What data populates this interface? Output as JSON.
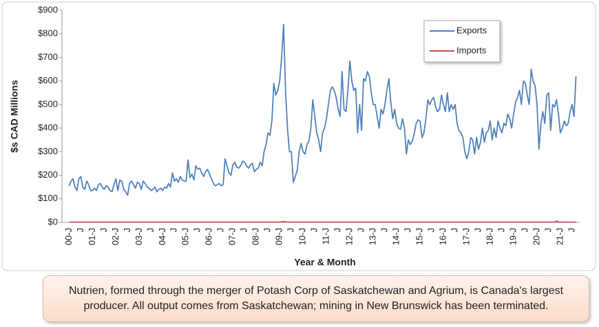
{
  "chart_data": {
    "type": "line",
    "caption": "Nutrien, formed through the merger of Potash Corp of Saskatchewan and Agrium, is Canada's largest producer. All output comes from Saskatchewan; mining in New Brunswick has been terminated.",
    "x_label": "Year & Month",
    "y_label": "$s CAD Millions",
    "ylim": [
      0,
      900
    ],
    "yticks": [
      {
        "value": 0,
        "label": "$0"
      },
      {
        "value": 100,
        "label": "$100"
      },
      {
        "value": 200,
        "label": "$200"
      },
      {
        "value": 300,
        "label": "$300"
      },
      {
        "value": 400,
        "label": "$400"
      },
      {
        "value": 500,
        "label": "$500"
      },
      {
        "value": 600,
        "label": "$600"
      },
      {
        "value": 700,
        "label": "$700"
      },
      {
        "value": 800,
        "label": "$800"
      },
      {
        "value": 900,
        "label": "$900"
      }
    ],
    "categories": [
      "00-J",
      null,
      null,
      null,
      null,
      null,
      "J",
      null,
      null,
      null,
      null,
      null,
      "01-J",
      null,
      null,
      null,
      null,
      null,
      "J",
      null,
      null,
      null,
      null,
      null,
      "02-J",
      null,
      null,
      null,
      null,
      null,
      "J",
      null,
      null,
      null,
      null,
      null,
      "03-J",
      null,
      null,
      null,
      null,
      null,
      "J",
      null,
      null,
      null,
      null,
      null,
      "04-J",
      null,
      null,
      null,
      null,
      null,
      "J",
      null,
      null,
      null,
      null,
      null,
      "05-J",
      null,
      null,
      null,
      null,
      null,
      "J",
      null,
      null,
      null,
      null,
      null,
      "06-J",
      null,
      null,
      null,
      null,
      null,
      "J",
      null,
      null,
      null,
      null,
      null,
      "07-J",
      null,
      null,
      null,
      null,
      null,
      "J",
      null,
      null,
      null,
      null,
      null,
      "08-J",
      null,
      null,
      null,
      null,
      null,
      "J",
      null,
      null,
      null,
      null,
      null,
      "09-J",
      null,
      null,
      null,
      null,
      null,
      "J",
      null,
      null,
      null,
      null,
      null,
      "10-J",
      null,
      null,
      null,
      null,
      null,
      "J",
      null,
      null,
      null,
      null,
      null,
      "11-J",
      null,
      null,
      null,
      null,
      null,
      "J",
      null,
      null,
      null,
      null,
      null,
      "12-J",
      null,
      null,
      null,
      null,
      null,
      "J",
      null,
      null,
      null,
      null,
      null,
      "13-J",
      null,
      null,
      null,
      null,
      null,
      "J",
      null,
      null,
      null,
      null,
      null,
      "14-J",
      null,
      null,
      null,
      null,
      null,
      "J",
      null,
      null,
      null,
      null,
      null,
      "15-J",
      null,
      null,
      null,
      null,
      null,
      "J",
      null,
      null,
      null,
      null,
      null,
      "16-J",
      null,
      null,
      null,
      null,
      null,
      "J",
      null,
      null,
      null,
      null,
      null,
      "17-J",
      null,
      null,
      null,
      null,
      null,
      "J",
      null,
      null,
      null,
      null,
      null,
      "18-J",
      null,
      null,
      null,
      null,
      null,
      "J",
      null,
      null,
      null,
      null,
      null,
      "19-J",
      null,
      null,
      null,
      null,
      null,
      "J",
      null,
      null,
      null,
      null,
      null,
      "20-J",
      null,
      null,
      null,
      null,
      null,
      "J",
      null,
      null,
      null,
      null,
      null,
      "21-J",
      null,
      null,
      null,
      null,
      null,
      "J",
      null,
      null
    ],
    "series": [
      {
        "name": "Exports",
        "color": "#4f81bd",
        "values": [
          155,
          175,
          185,
          150,
          135,
          185,
          195,
          150,
          140,
          175,
          160,
          135,
          135,
          145,
          135,
          160,
          165,
          150,
          140,
          155,
          150,
          135,
          130,
          160,
          185,
          135,
          180,
          175,
          140,
          130,
          115,
          165,
          175,
          160,
          145,
          170,
          165,
          140,
          175,
          165,
          150,
          145,
          135,
          140,
          150,
          130,
          140,
          145,
          135,
          150,
          145,
          165,
          150,
          210,
          175,
          185,
          170,
          195,
          180,
          175,
          175,
          265,
          190,
          205,
          180,
          240,
          225,
          230,
          210,
          195,
          215,
          225,
          205,
          185,
          165,
          155,
          160,
          165,
          155,
          160,
          270,
          240,
          210,
          200,
          245,
          255,
          235,
          230,
          240,
          260,
          255,
          240,
          230,
          245,
          250,
          215,
          225,
          230,
          255,
          240,
          300,
          330,
          380,
          370,
          430,
          590,
          540,
          560,
          600,
          700,
          840,
          560,
          400,
          300,
          300,
          170,
          195,
          220,
          300,
          335,
          300,
          290,
          330,
          345,
          400,
          520,
          450,
          380,
          350,
          300,
          380,
          400,
          440,
          500,
          560,
          575,
          560,
          530,
          480,
          450,
          640,
          480,
          470,
          560,
          685,
          600,
          560,
          570,
          380,
          500,
          390,
          610,
          600,
          640,
          620,
          550,
          500,
          500,
          450,
          400,
          480,
          460,
          500,
          560,
          610,
          510,
          440,
          480,
          420,
          400,
          395,
          440,
          400,
          290,
          350,
          330,
          345,
          375,
          420,
          435,
          430,
          360,
          380,
          440,
          520,
          500,
          520,
          530,
          490,
          470,
          480,
          540,
          500,
          470,
          550,
          470,
          500,
          480,
          500,
          420,
          390,
          380,
          360,
          300,
          270,
          300,
          360,
          350,
          290,
          360,
          310,
          340,
          400,
          340,
          380,
          390,
          430,
          350,
          400,
          360,
          430,
          400,
          380,
          420,
          410,
          460,
          440,
          400,
          460,
          510,
          530,
          560,
          500,
          600,
          590,
          540,
          500,
          650,
          600,
          580,
          500,
          310,
          420,
          470,
          420,
          540,
          550,
          390,
          500,
          490,
          520,
          460,
          380,
          400,
          430,
          410,
          420,
          470,
          500,
          450,
          620
        ]
      },
      {
        "name": "Imports",
        "color": "#c0504d",
        "values": [
          1,
          1,
          1,
          1,
          1,
          1,
          1,
          1,
          1,
          1,
          1,
          1,
          1,
          1,
          1,
          1,
          1,
          1,
          1,
          1,
          1,
          1,
          1,
          1,
          1,
          1,
          1,
          1,
          1,
          1,
          1,
          1,
          1,
          1,
          1,
          1,
          1,
          1,
          1,
          1,
          1,
          1,
          1,
          1,
          1,
          1,
          1,
          1,
          1,
          1,
          1,
          1,
          1,
          1,
          1,
          1,
          1,
          1,
          1,
          1,
          1,
          1,
          1,
          1,
          1,
          1,
          1,
          1,
          1,
          1,
          1,
          1,
          1,
          1,
          1,
          1,
          1,
          1,
          1,
          1,
          1,
          1,
          1,
          1,
          1,
          1,
          1,
          1,
          1,
          1,
          1,
          1,
          1,
          1,
          1,
          1,
          1,
          1,
          1,
          1,
          1,
          1,
          1,
          1,
          1,
          1,
          1,
          1,
          1,
          2,
          4,
          2,
          1,
          1,
          1,
          1,
          1,
          1,
          1,
          1,
          1,
          1,
          1,
          1,
          1,
          1,
          1,
          1,
          1,
          1,
          1,
          1,
          1,
          1,
          1,
          1,
          1,
          1,
          1,
          1,
          1,
          1,
          1,
          1,
          1,
          1,
          1,
          1,
          1,
          1,
          1,
          1,
          1,
          1,
          1,
          1,
          1,
          1,
          1,
          1,
          1,
          1,
          1,
          1,
          1,
          1,
          1,
          1,
          1,
          1,
          1,
          1,
          1,
          1,
          1,
          1,
          1,
          1,
          1,
          1,
          1,
          1,
          1,
          1,
          1,
          1,
          1,
          1,
          1,
          1,
          1,
          1,
          1,
          1,
          1,
          1,
          1,
          1,
          1,
          1,
          1,
          1,
          1,
          1,
          1,
          1,
          1,
          1,
          1,
          1,
          1,
          1,
          1,
          1,
          1,
          1,
          1,
          1,
          1,
          1,
          1,
          1,
          1,
          1,
          1,
          1,
          1,
          1,
          1,
          1,
          1,
          1,
          1,
          1,
          1,
          1,
          1,
          1,
          1,
          1,
          1,
          1,
          1,
          1,
          1,
          1,
          1,
          1,
          1,
          1,
          5,
          2,
          1,
          1,
          1,
          1,
          1,
          1,
          1,
          1,
          1
        ]
      }
    ]
  }
}
